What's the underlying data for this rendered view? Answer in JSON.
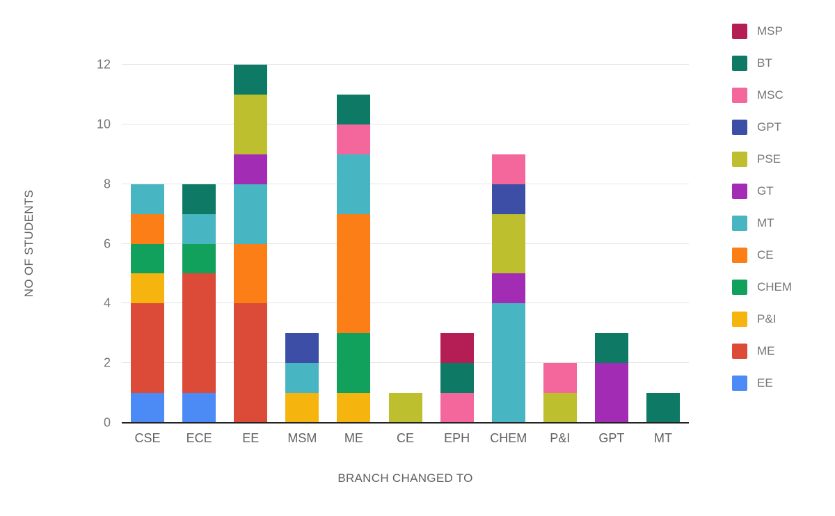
{
  "chart_data": {
    "type": "bar",
    "stacked": true,
    "title": "",
    "xlabel": "BRANCH CHANGED TO",
    "ylabel": "NO OF STUDENTS",
    "categories": [
      "CSE",
      "ECE",
      "EE",
      "MSM",
      "ME",
      "CE",
      "EPH",
      "CHEM",
      "P&I",
      "GPT",
      "MT"
    ],
    "ylim": [
      0,
      12
    ],
    "yticks": [
      0,
      2,
      4,
      6,
      8,
      10,
      12
    ],
    "grid": true,
    "legend_position": "right",
    "legend_order_top_to_bottom": [
      "MSP",
      "BT",
      "MSC",
      "GPT",
      "PSE",
      "GT",
      "MT",
      "CE",
      "CHEM",
      "P&I",
      "ME",
      "EE"
    ],
    "series": [
      {
        "name": "EE",
        "color": "#4C8BF5",
        "values": [
          1,
          1,
          0,
          0,
          0,
          0,
          0,
          0,
          0,
          0,
          0
        ]
      },
      {
        "name": "ME",
        "color": "#DC4A38",
        "values": [
          3,
          4,
          4,
          0,
          0,
          0,
          0,
          0,
          0,
          0,
          0
        ]
      },
      {
        "name": "P&I",
        "color": "#F6B40E",
        "values": [
          1,
          0,
          0,
          1,
          1,
          0,
          0,
          0,
          0,
          0,
          0
        ]
      },
      {
        "name": "CHEM",
        "color": "#12A15C",
        "values": [
          1,
          1,
          0,
          0,
          2,
          0,
          0,
          0,
          0,
          0,
          0
        ]
      },
      {
        "name": "CE",
        "color": "#FB7E17",
        "values": [
          1,
          0,
          2,
          0,
          4,
          0,
          0,
          0,
          0,
          0,
          0
        ]
      },
      {
        "name": "MT",
        "color": "#48B5C2",
        "values": [
          1,
          1,
          2,
          1,
          2,
          0,
          0,
          4,
          0,
          0,
          0
        ]
      },
      {
        "name": "GT",
        "color": "#A32CB5",
        "values": [
          0,
          0,
          1,
          0,
          0,
          0,
          0,
          1,
          0,
          2,
          0
        ]
      },
      {
        "name": "PSE",
        "color": "#BDBF2F",
        "values": [
          0,
          0,
          2,
          0,
          0,
          1,
          0,
          2,
          1,
          0,
          0
        ]
      },
      {
        "name": "GPT",
        "color": "#3C4EA6",
        "values": [
          0,
          0,
          0,
          1,
          0,
          0,
          0,
          1,
          0,
          0,
          0
        ]
      },
      {
        "name": "MSC",
        "color": "#F4679D",
        "values": [
          0,
          0,
          0,
          0,
          1,
          0,
          1,
          1,
          1,
          0,
          0
        ]
      },
      {
        "name": "BT",
        "color": "#0E7A65",
        "values": [
          0,
          1,
          1,
          0,
          1,
          0,
          1,
          0,
          0,
          1,
          1
        ]
      },
      {
        "name": "MSP",
        "color": "#B51E54",
        "values": [
          0,
          0,
          0,
          0,
          0,
          0,
          1,
          0,
          0,
          0,
          0
        ]
      }
    ]
  }
}
